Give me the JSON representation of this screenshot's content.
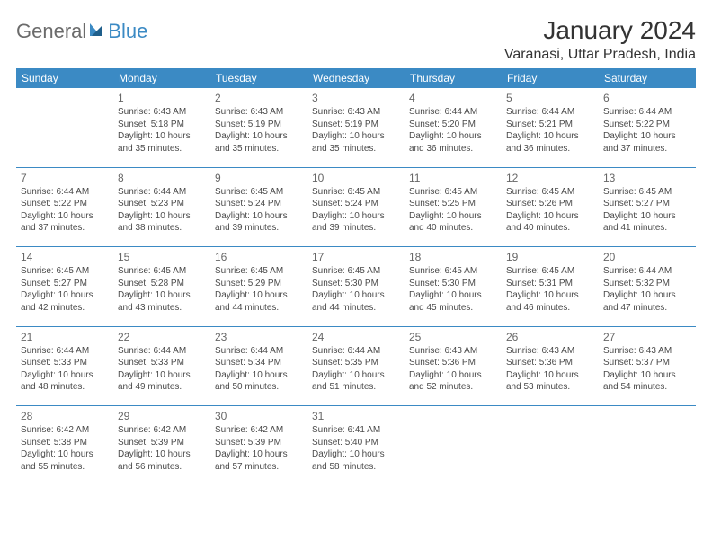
{
  "logo": {
    "text1": "General",
    "text2": "Blue"
  },
  "title": "January 2024",
  "location": "Varanasi, Uttar Pradesh, India",
  "colors": {
    "header_bg": "#3b8ac4",
    "header_text": "#ffffff",
    "text": "#4a4a4a",
    "separator": "#3b8ac4",
    "logo_gray": "#6b6b6b",
    "logo_blue": "#3b8ac4",
    "background": "#ffffff"
  },
  "weekdays": [
    "Sunday",
    "Monday",
    "Tuesday",
    "Wednesday",
    "Thursday",
    "Friday",
    "Saturday"
  ],
  "weeks": [
    [
      null,
      {
        "n": "1",
        "sr": "Sunrise: 6:43 AM",
        "ss": "Sunset: 5:18 PM",
        "d1": "Daylight: 10 hours",
        "d2": "and 35 minutes."
      },
      {
        "n": "2",
        "sr": "Sunrise: 6:43 AM",
        "ss": "Sunset: 5:19 PM",
        "d1": "Daylight: 10 hours",
        "d2": "and 35 minutes."
      },
      {
        "n": "3",
        "sr": "Sunrise: 6:43 AM",
        "ss": "Sunset: 5:19 PM",
        "d1": "Daylight: 10 hours",
        "d2": "and 35 minutes."
      },
      {
        "n": "4",
        "sr": "Sunrise: 6:44 AM",
        "ss": "Sunset: 5:20 PM",
        "d1": "Daylight: 10 hours",
        "d2": "and 36 minutes."
      },
      {
        "n": "5",
        "sr": "Sunrise: 6:44 AM",
        "ss": "Sunset: 5:21 PM",
        "d1": "Daylight: 10 hours",
        "d2": "and 36 minutes."
      },
      {
        "n": "6",
        "sr": "Sunrise: 6:44 AM",
        "ss": "Sunset: 5:22 PM",
        "d1": "Daylight: 10 hours",
        "d2": "and 37 minutes."
      }
    ],
    [
      {
        "n": "7",
        "sr": "Sunrise: 6:44 AM",
        "ss": "Sunset: 5:22 PM",
        "d1": "Daylight: 10 hours",
        "d2": "and 37 minutes."
      },
      {
        "n": "8",
        "sr": "Sunrise: 6:44 AM",
        "ss": "Sunset: 5:23 PM",
        "d1": "Daylight: 10 hours",
        "d2": "and 38 minutes."
      },
      {
        "n": "9",
        "sr": "Sunrise: 6:45 AM",
        "ss": "Sunset: 5:24 PM",
        "d1": "Daylight: 10 hours",
        "d2": "and 39 minutes."
      },
      {
        "n": "10",
        "sr": "Sunrise: 6:45 AM",
        "ss": "Sunset: 5:24 PM",
        "d1": "Daylight: 10 hours",
        "d2": "and 39 minutes."
      },
      {
        "n": "11",
        "sr": "Sunrise: 6:45 AM",
        "ss": "Sunset: 5:25 PM",
        "d1": "Daylight: 10 hours",
        "d2": "and 40 minutes."
      },
      {
        "n": "12",
        "sr": "Sunrise: 6:45 AM",
        "ss": "Sunset: 5:26 PM",
        "d1": "Daylight: 10 hours",
        "d2": "and 40 minutes."
      },
      {
        "n": "13",
        "sr": "Sunrise: 6:45 AM",
        "ss": "Sunset: 5:27 PM",
        "d1": "Daylight: 10 hours",
        "d2": "and 41 minutes."
      }
    ],
    [
      {
        "n": "14",
        "sr": "Sunrise: 6:45 AM",
        "ss": "Sunset: 5:27 PM",
        "d1": "Daylight: 10 hours",
        "d2": "and 42 minutes."
      },
      {
        "n": "15",
        "sr": "Sunrise: 6:45 AM",
        "ss": "Sunset: 5:28 PM",
        "d1": "Daylight: 10 hours",
        "d2": "and 43 minutes."
      },
      {
        "n": "16",
        "sr": "Sunrise: 6:45 AM",
        "ss": "Sunset: 5:29 PM",
        "d1": "Daylight: 10 hours",
        "d2": "and 44 minutes."
      },
      {
        "n": "17",
        "sr": "Sunrise: 6:45 AM",
        "ss": "Sunset: 5:30 PM",
        "d1": "Daylight: 10 hours",
        "d2": "and 44 minutes."
      },
      {
        "n": "18",
        "sr": "Sunrise: 6:45 AM",
        "ss": "Sunset: 5:30 PM",
        "d1": "Daylight: 10 hours",
        "d2": "and 45 minutes."
      },
      {
        "n": "19",
        "sr": "Sunrise: 6:45 AM",
        "ss": "Sunset: 5:31 PM",
        "d1": "Daylight: 10 hours",
        "d2": "and 46 minutes."
      },
      {
        "n": "20",
        "sr": "Sunrise: 6:44 AM",
        "ss": "Sunset: 5:32 PM",
        "d1": "Daylight: 10 hours",
        "d2": "and 47 minutes."
      }
    ],
    [
      {
        "n": "21",
        "sr": "Sunrise: 6:44 AM",
        "ss": "Sunset: 5:33 PM",
        "d1": "Daylight: 10 hours",
        "d2": "and 48 minutes."
      },
      {
        "n": "22",
        "sr": "Sunrise: 6:44 AM",
        "ss": "Sunset: 5:33 PM",
        "d1": "Daylight: 10 hours",
        "d2": "and 49 minutes."
      },
      {
        "n": "23",
        "sr": "Sunrise: 6:44 AM",
        "ss": "Sunset: 5:34 PM",
        "d1": "Daylight: 10 hours",
        "d2": "and 50 minutes."
      },
      {
        "n": "24",
        "sr": "Sunrise: 6:44 AM",
        "ss": "Sunset: 5:35 PM",
        "d1": "Daylight: 10 hours",
        "d2": "and 51 minutes."
      },
      {
        "n": "25",
        "sr": "Sunrise: 6:43 AM",
        "ss": "Sunset: 5:36 PM",
        "d1": "Daylight: 10 hours",
        "d2": "and 52 minutes."
      },
      {
        "n": "26",
        "sr": "Sunrise: 6:43 AM",
        "ss": "Sunset: 5:36 PM",
        "d1": "Daylight: 10 hours",
        "d2": "and 53 minutes."
      },
      {
        "n": "27",
        "sr": "Sunrise: 6:43 AM",
        "ss": "Sunset: 5:37 PM",
        "d1": "Daylight: 10 hours",
        "d2": "and 54 minutes."
      }
    ],
    [
      {
        "n": "28",
        "sr": "Sunrise: 6:42 AM",
        "ss": "Sunset: 5:38 PM",
        "d1": "Daylight: 10 hours",
        "d2": "and 55 minutes."
      },
      {
        "n": "29",
        "sr": "Sunrise: 6:42 AM",
        "ss": "Sunset: 5:39 PM",
        "d1": "Daylight: 10 hours",
        "d2": "and 56 minutes."
      },
      {
        "n": "30",
        "sr": "Sunrise: 6:42 AM",
        "ss": "Sunset: 5:39 PM",
        "d1": "Daylight: 10 hours",
        "d2": "and 57 minutes."
      },
      {
        "n": "31",
        "sr": "Sunrise: 6:41 AM",
        "ss": "Sunset: 5:40 PM",
        "d1": "Daylight: 10 hours",
        "d2": "and 58 minutes."
      },
      null,
      null,
      null
    ]
  ]
}
